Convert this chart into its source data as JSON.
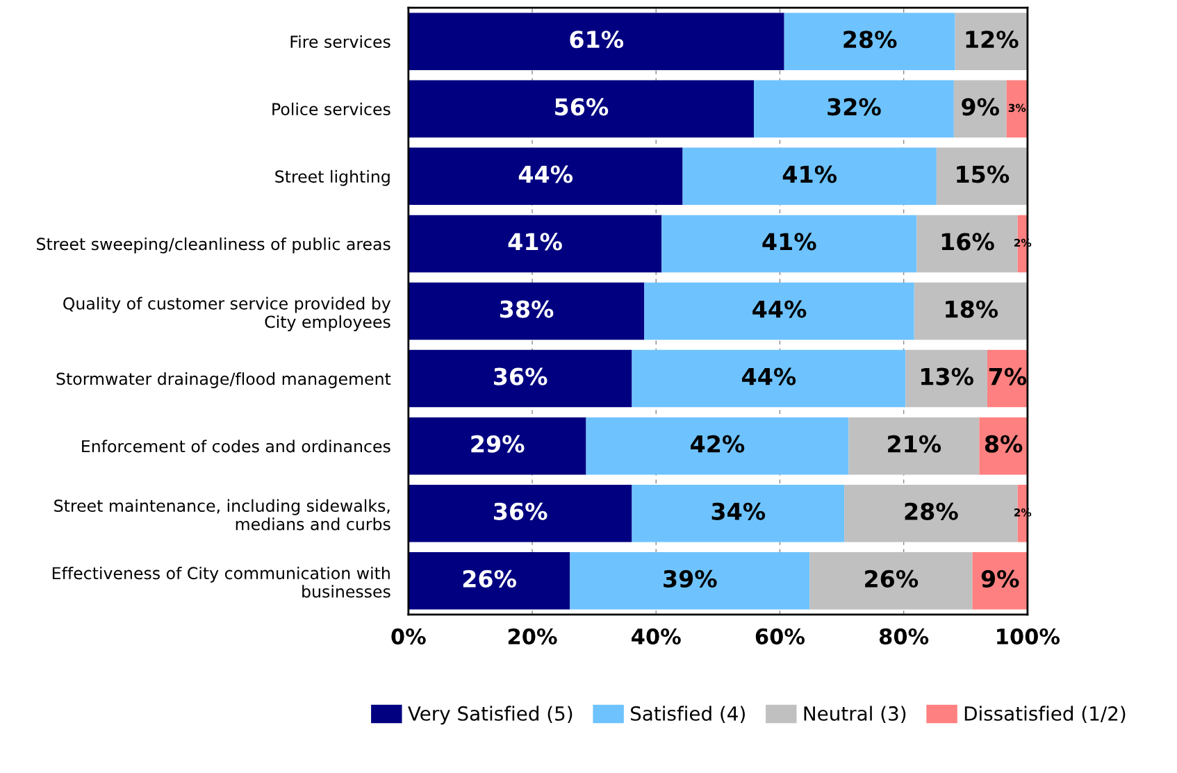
{
  "chart_data": {
    "type": "bar",
    "orientation": "horizontal",
    "stacked": true,
    "categories": [
      "Fire services",
      "Police services",
      "Street lighting",
      "Street sweeping/cleanliness of public areas",
      "Quality of customer service provided by\nCity employees",
      "Stormwater drainage/flood management",
      "Enforcement of codes and ordinances",
      "Street maintenance, including sidewalks,\nmedians and curbs",
      "Effectiveness of City communication with\nbusinesses"
    ],
    "series": [
      {
        "name": "Very Satisfied (5)",
        "color": "#000080",
        "values": [
          60.7,
          55.8,
          44.3,
          40.9,
          38.1,
          36.1,
          28.7,
          36.1,
          26.1
        ],
        "value_labels": [
          "61%",
          "56%",
          "44%",
          "41%",
          "38%",
          "36%",
          "29%",
          "36%",
          "26%"
        ]
      },
      {
        "name": "Satisfied (4)",
        "color": "#6ec3ff",
        "values": [
          27.6,
          32.3,
          41.0,
          41.2,
          43.6,
          44.2,
          42.4,
          34.3,
          38.7
        ],
        "value_labels": [
          "28%",
          "32%",
          "41%",
          "41%",
          "44%",
          "44%",
          "42%",
          "34%",
          "39%"
        ]
      },
      {
        "name": "Neutral (3)",
        "color": "#c0c0c0",
        "values": [
          11.7,
          8.5,
          14.7,
          16.3,
          18.3,
          13.2,
          21.1,
          28.0,
          26.3
        ],
        "value_labels": [
          "12%",
          "9%",
          "15%",
          "16%",
          "18%",
          "13%",
          "21%",
          "28%",
          "26%"
        ]
      },
      {
        "name": "Dissatisfied (1/2)",
        "color": "#ff8080",
        "values": [
          null,
          3.4,
          null,
          1.6,
          null,
          6.5,
          7.8,
          1.6,
          8.9
        ],
        "value_labels": [
          null,
          "3%",
          null,
          "2%",
          null,
          "7%",
          "8%",
          "2%",
          "9%"
        ]
      }
    ],
    "xlim": [
      0,
      100
    ],
    "xticks": [
      {
        "value": 0,
        "label": "0%"
      },
      {
        "value": 20,
        "label": "20%"
      },
      {
        "value": 40,
        "label": "40%"
      },
      {
        "value": 60,
        "label": "60%"
      },
      {
        "value": 80,
        "label": "80%"
      },
      {
        "value": 100,
        "label": "100%"
      }
    ],
    "grid": "x",
    "legend": "bottom"
  }
}
